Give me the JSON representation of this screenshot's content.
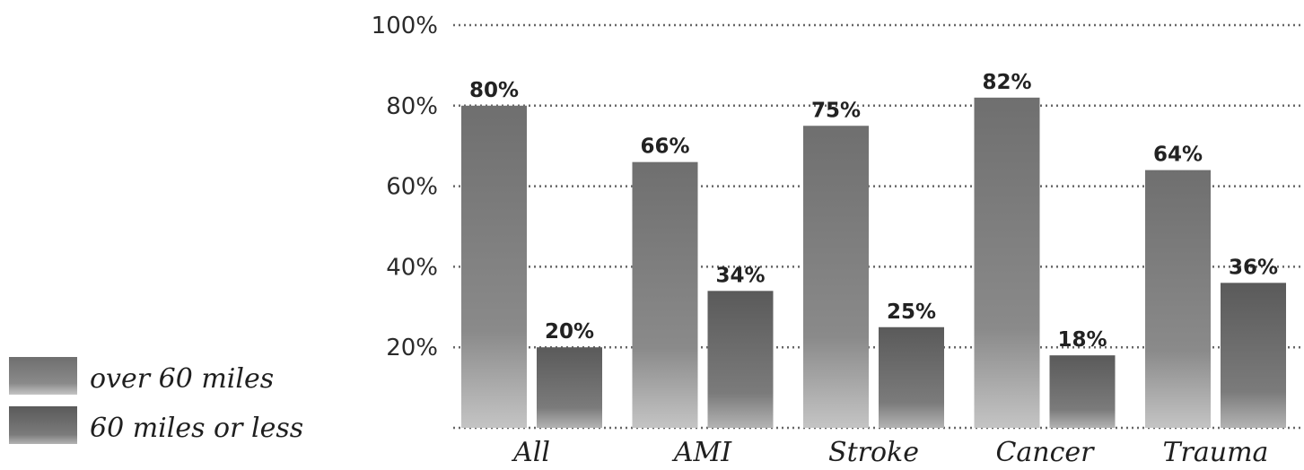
{
  "chart_data": {
    "type": "bar",
    "categories": [
      "All",
      "AMI",
      "Stroke",
      "Cancer",
      "Trauma"
    ],
    "series": [
      {
        "name": "over 60 miles",
        "values": [
          80,
          66,
          75,
          82,
          64
        ],
        "value_labels": [
          "80%",
          "66%",
          "75%",
          "82%",
          "64%"
        ]
      },
      {
        "name": "60 miles or less",
        "values": [
          20,
          34,
          25,
          18,
          36
        ],
        "value_labels": [
          "20%",
          "34%",
          "25%",
          "18%",
          "36%"
        ]
      }
    ],
    "ylim": [
      0,
      100
    ],
    "yticks": [
      20,
      40,
      60,
      80,
      100
    ],
    "ytick_labels": [
      "20%",
      "40%",
      "60%",
      "80%",
      "100%"
    ],
    "grid": true,
    "legend_position": "bottom-left",
    "colors": {
      "over 60 miles": "#7a7a7a",
      "60 miles or less": "#5e5e5e"
    }
  }
}
